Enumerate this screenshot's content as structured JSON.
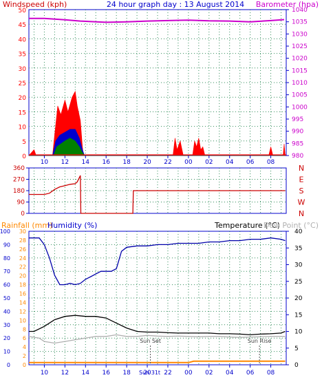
{
  "header": {
    "windspeed_label": "Windspeed (kph)",
    "title": "24 hour graph day : 13 August 2014",
    "barometer_label": "Barometer (hpa)"
  },
  "colors": {
    "grid": "#2e8b57",
    "axis": "#0000cc",
    "wind_red": "#ff0000",
    "wind_blue": "#0000cc",
    "wind_green": "#008000",
    "barometer": "#cc00cc",
    "direction": "#cc0000",
    "humidity": "#0000aa",
    "temperature": "#000000",
    "dewpoint": "#b0b0b0",
    "rainfall": "#ff8800",
    "left_scale_rain": "#ff8800",
    "left_scale_hum": "#0000cc"
  },
  "x_ticks": [
    "10",
    "12",
    "14",
    "16",
    "18",
    "20",
    "22",
    "00",
    "02",
    "04",
    "06",
    "08"
  ],
  "panel1": {
    "left_ticks": [
      "0",
      "5",
      "10",
      "15",
      "20",
      "25",
      "30",
      "35",
      "40",
      "45",
      "50"
    ],
    "right_ticks": [
      "980",
      "985",
      "990",
      "995",
      "1000",
      "1005",
      "1010",
      "1015",
      "1020",
      "1025",
      "1030",
      "1035",
      "1040"
    ]
  },
  "panel2": {
    "left_ticks": [
      "0",
      "90",
      "180",
      "270",
      "360"
    ],
    "right_letters": [
      "N",
      "W",
      "S",
      "E",
      "N"
    ]
  },
  "panel3": {
    "rainfall_label": "Rainfall (mm)",
    "humidity_label": "Humidity (%)",
    "temperature_label": "Temperature (°C)",
    "dewpoint_label": "Dew Point (°C)",
    "hum_ticks": [
      "0",
      "10",
      "20",
      "30",
      "40",
      "50",
      "60",
      "70",
      "80",
      "90",
      "100"
    ],
    "rain_ticks": [
      "0",
      "2",
      "4",
      "6",
      "8",
      "10",
      "12",
      "14",
      "16",
      "18",
      "20",
      "22",
      "24",
      "26",
      "28",
      "30"
    ],
    "temp_ticks": [
      "0",
      "5",
      "10",
      "15",
      "20",
      "25",
      "30",
      "35",
      "40"
    ],
    "sunset_label": "Sun Set",
    "sunrise_label": "Sun Rise",
    "sunset_tick_label": "Sun 31t"
  },
  "chart_data": [
    {
      "type": "line",
      "name": "windspeed-barometer",
      "x_unit": "hour of day",
      "x_range": [
        8.5,
        33.5
      ],
      "wind_ylim": [
        0,
        50
      ],
      "baro_ylim": [
        980,
        1040
      ],
      "barometer": [
        [
          8.5,
          1036.4
        ],
        [
          10,
          1036.4
        ],
        [
          12,
          1035.8
        ],
        [
          13.5,
          1035.3
        ],
        [
          16,
          1034.8
        ],
        [
          18,
          1035.0
        ],
        [
          20,
          1035.3
        ],
        [
          22,
          1035.5
        ],
        [
          24,
          1035.7
        ],
        [
          26,
          1035.4
        ],
        [
          28,
          1035.3
        ],
        [
          30,
          1035.0
        ],
        [
          32,
          1035.5
        ],
        [
          33.3,
          1035.9
        ]
      ],
      "wind_gust": [
        [
          8.5,
          0
        ],
        [
          9,
          2
        ],
        [
          9.2,
          0
        ],
        [
          10.8,
          0
        ],
        [
          11,
          7
        ],
        [
          11.3,
          17
        ],
        [
          11.6,
          14
        ],
        [
          12,
          19
        ],
        [
          12.3,
          15
        ],
        [
          12.7,
          20
        ],
        [
          13,
          22
        ],
        [
          13.2,
          17
        ],
        [
          13.5,
          12
        ],
        [
          13.7,
          3
        ],
        [
          13.8,
          0
        ],
        [
          22.5,
          0
        ],
        [
          22.7,
          6
        ],
        [
          22.9,
          2
        ],
        [
          23.2,
          5
        ],
        [
          23.5,
          0
        ],
        [
          24.4,
          0
        ],
        [
          24.6,
          5
        ],
        [
          24.8,
          3
        ],
        [
          25,
          6
        ],
        [
          25.2,
          2
        ],
        [
          25.4,
          3
        ],
        [
          25.6,
          0
        ],
        [
          31.8,
          0
        ],
        [
          32,
          3
        ],
        [
          32.2,
          0
        ],
        [
          33.2,
          0
        ],
        [
          33.3,
          4
        ],
        [
          33.4,
          0
        ]
      ],
      "wind_avg": [
        [
          8.5,
          0
        ],
        [
          10.8,
          0
        ],
        [
          11.1,
          5
        ],
        [
          11.5,
          7
        ],
        [
          12,
          8
        ],
        [
          12.5,
          9
        ],
        [
          13,
          9
        ],
        [
          13.4,
          6
        ],
        [
          13.7,
          2
        ],
        [
          13.9,
          0
        ],
        [
          33.4,
          0
        ]
      ],
      "wind_low": [
        [
          8.5,
          0
        ],
        [
          10.9,
          0
        ],
        [
          11.2,
          3
        ],
        [
          11.6,
          4
        ],
        [
          12,
          5
        ],
        [
          12.5,
          6
        ],
        [
          13,
          5
        ],
        [
          13.4,
          3
        ],
        [
          13.7,
          1
        ],
        [
          13.9,
          0
        ],
        [
          33.4,
          0
        ]
      ]
    },
    {
      "type": "line",
      "name": "wind-direction",
      "x_unit": "hour of day",
      "ylim": [
        0,
        360
      ],
      "values": [
        [
          8.5,
          150
        ],
        [
          10,
          150
        ],
        [
          10.5,
          160
        ],
        [
          11,
          190
        ],
        [
          11.5,
          210
        ],
        [
          12,
          220
        ],
        [
          12.5,
          230
        ],
        [
          13,
          235
        ],
        [
          13.2,
          250
        ],
        [
          13.5,
          300
        ],
        [
          13.55,
          0
        ],
        [
          18.6,
          0
        ],
        [
          18.65,
          180
        ],
        [
          33.4,
          180
        ]
      ]
    },
    {
      "type": "line",
      "name": "humidity-temperature-rainfall",
      "x_unit": "hour of day",
      "hum_ylim": [
        0,
        100
      ],
      "temp_ylim": [
        0,
        40
      ],
      "rain_ylim": [
        0,
        30
      ],
      "humidity": [
        [
          8.5,
          95
        ],
        [
          9.5,
          95
        ],
        [
          10,
          90
        ],
        [
          10.5,
          80
        ],
        [
          11,
          67
        ],
        [
          11.5,
          60
        ],
        [
          12,
          60
        ],
        [
          12.5,
          61
        ],
        [
          13,
          60
        ],
        [
          13.5,
          61
        ],
        [
          14,
          64
        ],
        [
          14.5,
          66
        ],
        [
          15,
          68
        ],
        [
          15.5,
          70
        ],
        [
          16,
          70
        ],
        [
          16.5,
          70
        ],
        [
          17,
          72
        ],
        [
          17.5,
          85
        ],
        [
          18,
          88
        ],
        [
          19,
          89
        ],
        [
          20,
          89
        ],
        [
          21,
          90
        ],
        [
          22,
          90
        ],
        [
          23,
          91
        ],
        [
          24,
          91
        ],
        [
          25,
          91
        ],
        [
          26,
          92
        ],
        [
          27,
          92
        ],
        [
          28,
          93
        ],
        [
          29,
          93
        ],
        [
          30,
          94
        ],
        [
          31,
          94
        ],
        [
          32,
          95
        ],
        [
          33,
          94
        ],
        [
          33.4,
          93
        ]
      ],
      "temperature": [
        [
          8.5,
          10
        ],
        [
          9,
          10
        ],
        [
          10,
          11.5
        ],
        [
          11,
          13.5
        ],
        [
          12,
          14.5
        ],
        [
          13,
          14.8
        ],
        [
          14,
          14.5
        ],
        [
          15,
          14.5
        ],
        [
          16,
          14.0
        ],
        [
          17,
          12.5
        ],
        [
          18,
          11
        ],
        [
          19,
          10
        ],
        [
          20,
          9.8
        ],
        [
          21,
          9.8
        ],
        [
          22,
          9.6
        ],
        [
          23,
          9.5
        ],
        [
          24,
          9.5
        ],
        [
          25,
          9.5
        ],
        [
          26,
          9.5
        ],
        [
          27,
          9.3
        ],
        [
          28,
          9.3
        ],
        [
          29,
          9.2
        ],
        [
          30,
          9.0
        ],
        [
          31,
          9.2
        ],
        [
          32,
          9.3
        ],
        [
          33,
          9.5
        ],
        [
          33.4,
          10.0
        ]
      ],
      "dewpoint": [
        [
          8.5,
          8.5
        ],
        [
          9.5,
          8
        ],
        [
          10,
          7
        ],
        [
          11,
          6.5
        ],
        [
          12,
          7
        ],
        [
          13,
          7.5
        ],
        [
          14,
          8
        ],
        [
          15,
          8.5
        ],
        [
          16,
          8.5
        ],
        [
          17,
          9
        ],
        [
          18,
          8.5
        ],
        [
          19,
          8.5
        ],
        [
          20,
          8.8
        ],
        [
          21,
          8.6
        ],
        [
          22,
          8.5
        ],
        [
          23,
          8.6
        ],
        [
          24,
          8.5
        ],
        [
          25,
          8.4
        ],
        [
          26,
          8.5
        ],
        [
          27,
          8.5
        ],
        [
          28,
          8.3
        ],
        [
          29,
          8.2
        ],
        [
          30,
          8.3
        ],
        [
          31,
          8.4
        ],
        [
          32,
          8.5
        ],
        [
          33,
          8.5
        ],
        [
          33.4,
          8.5
        ]
      ],
      "rainfall": [
        [
          8.5,
          0.5
        ],
        [
          24,
          0.5
        ],
        [
          24.5,
          0.8
        ],
        [
          33.4,
          0.8
        ]
      ],
      "sunset_hour": 20.3,
      "sunrise_hour": 30.9
    }
  ]
}
